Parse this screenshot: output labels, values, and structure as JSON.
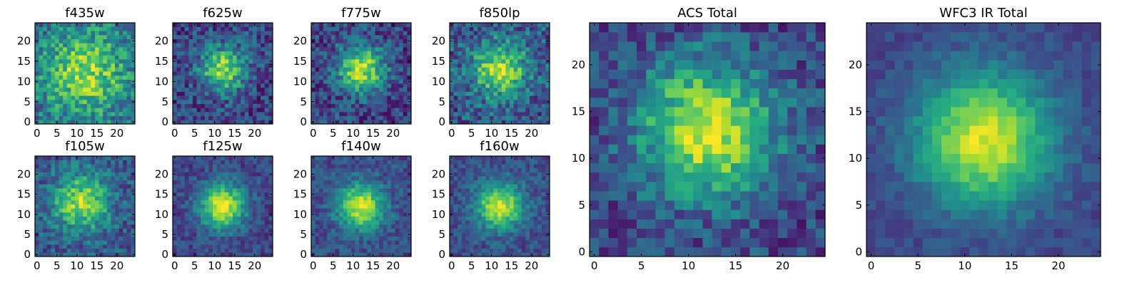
{
  "chart_data": {
    "type": "heatmap",
    "colormap": "viridis",
    "colors": [
      "#440154",
      "#3b528b",
      "#21918c",
      "#5ec962",
      "#fde725"
    ],
    "grid": false,
    "legend": "none",
    "grid_size": 25,
    "panels": [
      {
        "id": "f435w",
        "title": "f435w",
        "xlim": [
          0,
          24
        ],
        "ylim": [
          0,
          24
        ],
        "xticks": [
          "0",
          "5",
          "10",
          "15",
          "20"
        ],
        "yticks": [
          "0",
          "5",
          "10",
          "15",
          "20"
        ],
        "center": [
          12,
          12
        ],
        "sigma": 7.0,
        "peak": 0.85,
        "background": 0.6,
        "noise": 0.45
      },
      {
        "id": "f625w",
        "title": "f625w",
        "xlim": [
          0,
          24
        ],
        "ylim": [
          0,
          24
        ],
        "xticks": [
          "0",
          "5",
          "10",
          "15",
          "20"
        ],
        "yticks": [
          "0",
          "5",
          "10",
          "15",
          "20"
        ],
        "center": [
          12,
          13
        ],
        "sigma": 4.0,
        "peak": 0.85,
        "background": 0.35,
        "noise": 0.4
      },
      {
        "id": "f775w",
        "title": "f775w",
        "xlim": [
          0,
          24
        ],
        "ylim": [
          0,
          24
        ],
        "xticks": [
          "0",
          "5",
          "10",
          "15",
          "20"
        ],
        "yticks": [
          "0",
          "5",
          "10",
          "15",
          "20"
        ],
        "center": [
          12,
          13
        ],
        "sigma": 4.0,
        "peak": 0.9,
        "background": 0.35,
        "noise": 0.4
      },
      {
        "id": "f850lp",
        "title": "f850lp",
        "xlim": [
          0,
          24
        ],
        "ylim": [
          0,
          24
        ],
        "xticks": [
          "0",
          "5",
          "10",
          "15",
          "20"
        ],
        "yticks": [
          "0",
          "5",
          "10",
          "15",
          "20"
        ],
        "center": [
          12,
          13
        ],
        "sigma": 5.0,
        "peak": 0.85,
        "background": 0.45,
        "noise": 0.45
      },
      {
        "id": "acs-total",
        "title": "ACS Total",
        "xlim": [
          0,
          24
        ],
        "ylim": [
          0,
          24
        ],
        "xticks": [
          "0",
          "5",
          "10",
          "15",
          "20"
        ],
        "yticks": [
          "0",
          "5",
          "10",
          "15",
          "20"
        ],
        "center": [
          12,
          13
        ],
        "sigma": 5.0,
        "peak": 0.95,
        "background": 0.35,
        "noise": 0.35
      },
      {
        "id": "f105w",
        "title": "f105w",
        "xlim": [
          0,
          24
        ],
        "ylim": [
          0,
          24
        ],
        "xticks": [
          "0",
          "5",
          "10",
          "15",
          "20"
        ],
        "yticks": [
          "0",
          "5",
          "10",
          "15",
          "20"
        ],
        "center": [
          11,
          13
        ],
        "sigma": 5.0,
        "peak": 0.85,
        "background": 0.45,
        "noise": 0.35
      },
      {
        "id": "f125w",
        "title": "f125w",
        "xlim": [
          0,
          24
        ],
        "ylim": [
          0,
          24
        ],
        "xticks": [
          "0",
          "5",
          "10",
          "15",
          "20"
        ],
        "yticks": [
          "0",
          "5",
          "10",
          "15",
          "20"
        ],
        "center": [
          12,
          12
        ],
        "sigma": 4.0,
        "peak": 0.95,
        "background": 0.35,
        "noise": 0.25
      },
      {
        "id": "f140w",
        "title": "f140w",
        "xlim": [
          0,
          24
        ],
        "ylim": [
          0,
          24
        ],
        "xticks": [
          "0",
          "5",
          "10",
          "15",
          "20"
        ],
        "yticks": [
          "0",
          "5",
          "10",
          "15",
          "20"
        ],
        "center": [
          12,
          12
        ],
        "sigma": 4.0,
        "peak": 0.95,
        "background": 0.4,
        "noise": 0.25
      },
      {
        "id": "f160w",
        "title": "f160w",
        "xlim": [
          0,
          24
        ],
        "ylim": [
          0,
          24
        ],
        "xticks": [
          "0",
          "5",
          "10",
          "15",
          "20"
        ],
        "yticks": [
          "0",
          "5",
          "10",
          "15",
          "20"
        ],
        "center": [
          12,
          12
        ],
        "sigma": 4.0,
        "peak": 0.95,
        "background": 0.4,
        "noise": 0.25
      },
      {
        "id": "wfc3-ir-total",
        "title": "WFC3 IR Total",
        "xlim": [
          0,
          24
        ],
        "ylim": [
          0,
          24
        ],
        "xticks": [
          "0",
          "5",
          "10",
          "15",
          "20"
        ],
        "yticks": [
          "0",
          "5",
          "10",
          "15",
          "20"
        ],
        "center": [
          12,
          12
        ],
        "sigma": 5.0,
        "peak": 0.95,
        "background": 0.35,
        "noise": 0.15
      }
    ]
  }
}
